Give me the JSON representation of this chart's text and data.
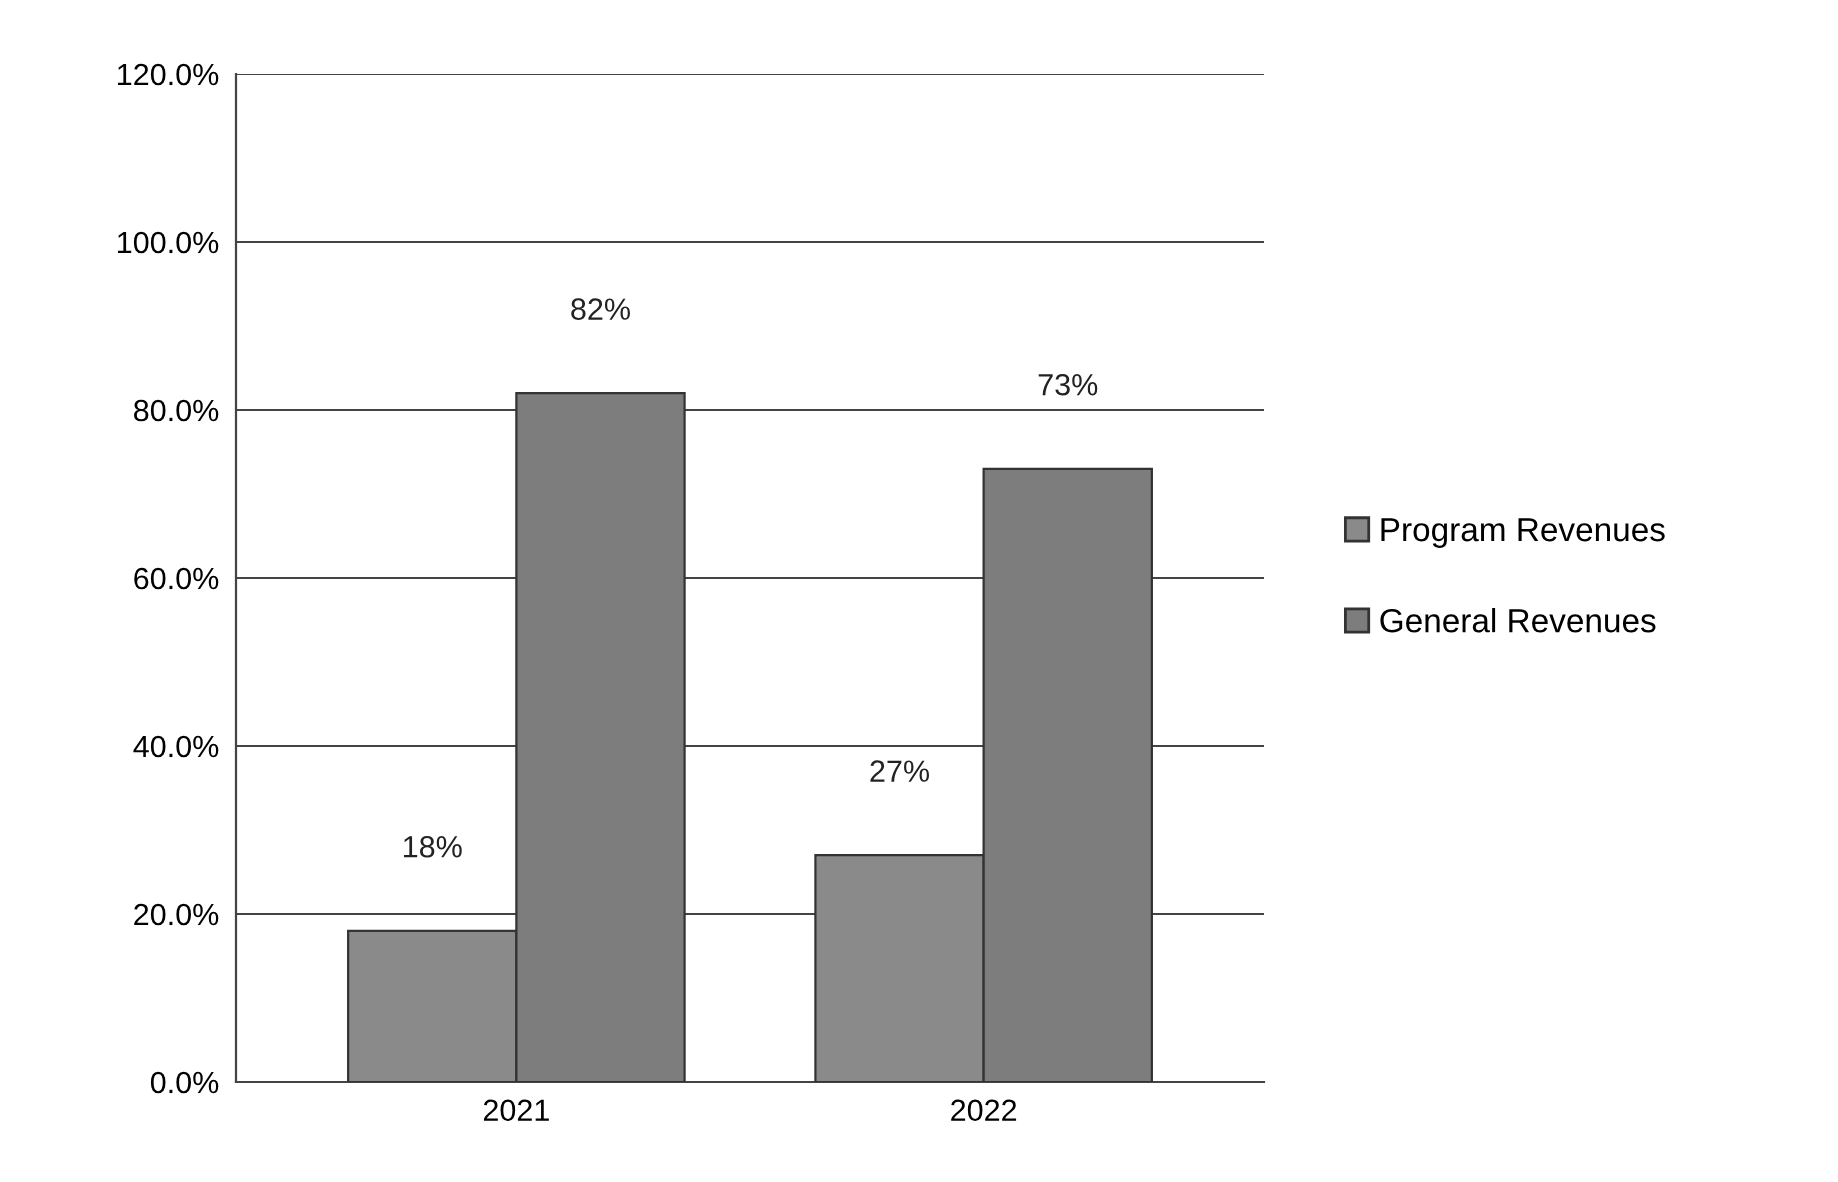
{
  "chart_data": {
    "type": "bar",
    "categories": [
      "2021",
      "2022"
    ],
    "series": [
      {
        "name": "Program Revenues",
        "color": "#8a8a8a",
        "values": [
          18,
          27
        ],
        "value_labels": [
          "18%",
          "27%"
        ]
      },
      {
        "name": "General Revenues",
        "color": "#7d7d7d",
        "values": [
          82,
          73
        ],
        "value_labels": [
          "82%",
          "73%"
        ]
      }
    ],
    "ylim": [
      0,
      120
    ],
    "yticks": [
      {
        "value": 0,
        "label": "0.0%"
      },
      {
        "value": 20,
        "label": "20.0%"
      },
      {
        "value": 40,
        "label": "40.0%"
      },
      {
        "value": 60,
        "label": "60.0%"
      },
      {
        "value": 80,
        "label": "80.0%"
      },
      {
        "value": 100,
        "label": "100.0%"
      },
      {
        "value": 120,
        "label": "120.0%"
      }
    ],
    "grid": "y",
    "legend": "right"
  }
}
